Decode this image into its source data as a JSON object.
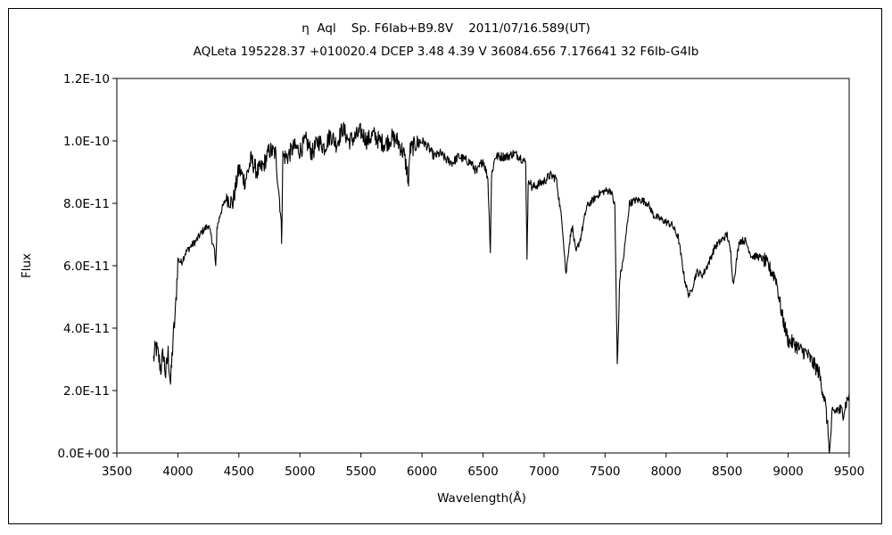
{
  "chart_data": {
    "type": "line",
    "title": "η  Aql    Sp. F6Iab+B9.8V    2011/07/16.589(UT)",
    "subtitle": "AQLeta 195228.37 +010020.4 DCEP 3.48 4.39 V 36084.656 7.176641 32 F6Ib-G4Ib",
    "xlabel": "Wavelength(Å)",
    "ylabel": "Flux",
    "xlim": [
      3500,
      9500
    ],
    "ylim": [
      0,
      1.2e-10
    ],
    "xticks": [
      3500,
      4000,
      4500,
      5000,
      5500,
      6000,
      6500,
      7000,
      7500,
      8000,
      8500,
      9000,
      9500
    ],
    "yticks": [
      0,
      2e-11,
      4e-11,
      6e-11,
      8e-11,
      1e-10,
      1.2e-10
    ],
    "xtick_labels": [
      "3500",
      "4000",
      "4500",
      "5000",
      "5500",
      "6000",
      "6500",
      "7000",
      "7500",
      "8000",
      "8500",
      "9000",
      "9500"
    ],
    "ytick_labels": [
      "0.0E+00",
      "2.0E-11",
      "4.0E-11",
      "6.0E-11",
      "8.0E-11",
      "1.0E-10",
      "1.2E-10"
    ],
    "grid": false,
    "legend": "none",
    "line_color": "#000000",
    "series": [
      {
        "x": [
          3800,
          3820,
          3840,
          3860,
          3880,
          3900,
          3920,
          3940,
          3960,
          3980,
          4000,
          4030,
          4060,
          4100,
          4150,
          4200,
          4250,
          4300,
          4310,
          4320,
          4350,
          4400,
          4450,
          4500,
          4550,
          4600,
          4650,
          4700,
          4750,
          4800,
          4840,
          4850,
          4860,
          4900,
          4950,
          5000,
          5050,
          5100,
          5150,
          5200,
          5250,
          5300,
          5350,
          5400,
          5450,
          5500,
          5550,
          5600,
          5650,
          5700,
          5750,
          5800,
          5850,
          5880,
          5890,
          5900,
          5950,
          6000,
          6050,
          6100,
          6150,
          6200,
          6250,
          6300,
          6350,
          6400,
          6450,
          6500,
          6540,
          6560,
          6570,
          6600,
          6650,
          6700,
          6750,
          6800,
          6850,
          6860,
          6870,
          6880,
          6900,
          6950,
          7000,
          7050,
          7100,
          7150,
          7180,
          7200,
          7230,
          7260,
          7300,
          7350,
          7400,
          7450,
          7500,
          7550,
          7580,
          7600,
          7610,
          7620,
          7650,
          7700,
          7750,
          7800,
          7850,
          7900,
          7950,
          8000,
          8050,
          8100,
          8150,
          8180,
          8200,
          8250,
          8300,
          8350,
          8400,
          8450,
          8500,
          8530,
          8550,
          8600,
          8650,
          8700,
          8750,
          8800,
          8850,
          8900,
          8950,
          9000,
          9050,
          9100,
          9150,
          9200,
          9250,
          9300,
          9320,
          9340,
          9360,
          9400,
          9450,
          9500
        ],
        "y": [
          3e-11,
          3.4e-11,
          3.1e-11,
          2.7e-11,
          3.2e-11,
          2.5e-11,
          3.2e-11,
          2.2e-11,
          3.6e-11,
          4.5e-11,
          6.2e-11,
          6.1e-11,
          6.4e-11,
          6.6e-11,
          6.8e-11,
          7.1e-11,
          7.3e-11,
          6.5e-11,
          5.9e-11,
          7.2e-11,
          7.7e-11,
          8.2e-11,
          8e-11,
          9.1e-11,
          8.7e-11,
          9.4e-11,
          9e-11,
          9.2e-11,
          9.7e-11,
          9.6e-11,
          7.8e-11,
          6.9e-11,
          9.5e-11,
          9.5e-11,
          9.8e-11,
          9.7e-11,
          1e-10,
          9.6e-11,
          1e-10,
          9.8e-11,
          1.02e-10,
          9.9e-11,
          1.04e-10,
          1e-10,
          1.01e-10,
          1.03e-10,
          1e-10,
          1.02e-10,
          1e-10,
          9.9e-11,
          1.01e-10,
          1e-10,
          9.6e-11,
          9e-11,
          8.6e-11,
          9.7e-11,
          9.9e-11,
          1e-10,
          9.8e-11,
          9.5e-11,
          9.6e-11,
          9.4e-11,
          9.3e-11,
          9.5e-11,
          9.4e-11,
          9.3e-11,
          9e-11,
          9.4e-11,
          8.8e-11,
          6.5e-11,
          8.9e-11,
          9.5e-11,
          9.5e-11,
          9.5e-11,
          9.6e-11,
          9.5e-11,
          9.3e-11,
          6.3e-11,
          8.5e-11,
          8.8e-11,
          8.5e-11,
          8.6e-11,
          8.7e-11,
          8.9e-11,
          8.8e-11,
          7.3e-11,
          5.7e-11,
          6.5e-11,
          7.3e-11,
          6.4e-11,
          6.9e-11,
          7.9e-11,
          8.1e-11,
          8.3e-11,
          8.4e-11,
          8.4e-11,
          7.9e-11,
          2.8e-11,
          4e-11,
          5.6e-11,
          6.2e-11,
          8e-11,
          8.1e-11,
          8.1e-11,
          8e-11,
          7.6e-11,
          7.5e-11,
          7.4e-11,
          7.3e-11,
          6.9e-11,
          5.6e-11,
          5.1e-11,
          5.1e-11,
          5.8e-11,
          5.7e-11,
          6.1e-11,
          6.6e-11,
          6.8e-11,
          7e-11,
          6.4e-11,
          5.4e-11,
          6.8e-11,
          6.8e-11,
          6.3e-11,
          6.3e-11,
          6.2e-11,
          5.9e-11,
          5.6e-11,
          4.4e-11,
          3.6e-11,
          3.5e-11,
          3.3e-11,
          3.2e-11,
          2.9e-11,
          2.6e-11,
          1.7e-11,
          1e-11,
          0.0,
          1.2e-11,
          1.4e-11,
          1.3e-11,
          1.9e-11
        ]
      }
    ]
  }
}
